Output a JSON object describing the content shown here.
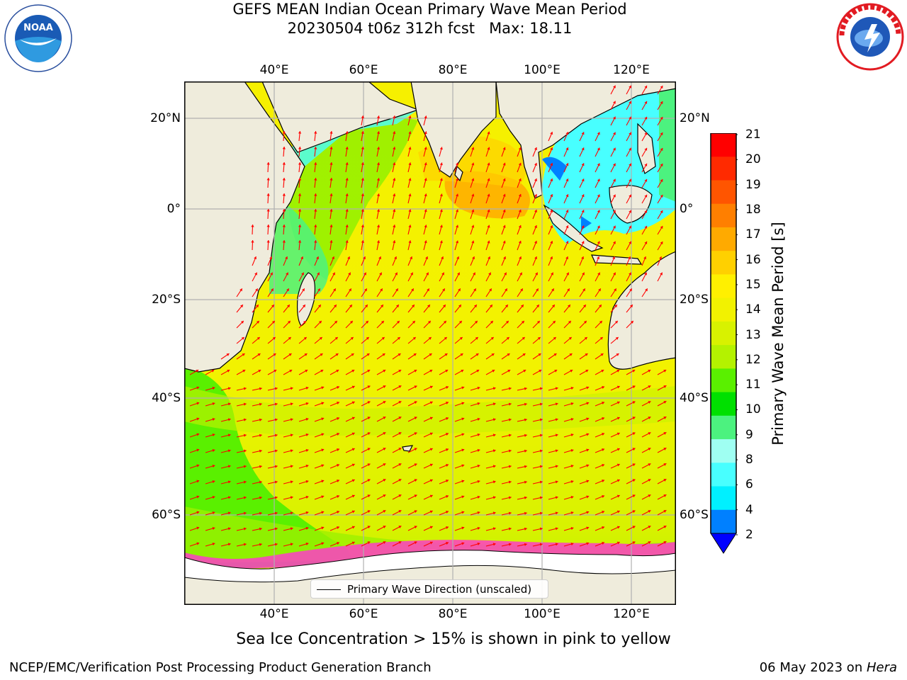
{
  "title_line1": "GEFS MEAN Indian Ocean Primary Wave Mean Period",
  "title_line2": "20230504 t06z 312h fcst   Max: 18.11",
  "subtitle": "Sea Ice Concentration > 15% is shown in pink to yellow",
  "footer_left": "NCEP/EMC/Verification Post Processing Product Generation Branch",
  "footer_date": "06 May 2023 on ",
  "footer_machine": "Hera",
  "legend_label": "Primary Wave Direction (unscaled)",
  "colorbar_label": "Primary Wave Mean Period [s]",
  "lon_ticks": [
    "40°E",
    "60°E",
    "80°E",
    "100°E",
    "120°E"
  ],
  "lat_ticks": [
    "20°N",
    "0°",
    "20°S",
    "40°S",
    "60°S"
  ],
  "colorbar": {
    "tick_labels": [
      "21",
      "20",
      "19",
      "18",
      "17",
      "16",
      "15",
      "14",
      "13",
      "12",
      "11",
      "10",
      "9",
      "8",
      "6",
      "4",
      "2"
    ],
    "colors": [
      "#ff0000",
      "#ff2a00",
      "#ff5500",
      "#ff7f00",
      "#ffaa00",
      "#ffd000",
      "#fff000",
      "#f2f200",
      "#d8f200",
      "#b4f200",
      "#5af000",
      "#00e000",
      "#4cf27f",
      "#9ffff2",
      "#48ffff",
      "#00f0ff",
      "#0080ff"
    ],
    "extend_color": "#0000ff"
  },
  "map_colors": {
    "land": "#efecdc",
    "sea_ice": "#ffffff",
    "arrow": "#ff0000",
    "grid": "#b0b0b0"
  },
  "logos": {
    "left": "NOAA",
    "right": "NATIONAL WEATHER SERVICE"
  }
}
